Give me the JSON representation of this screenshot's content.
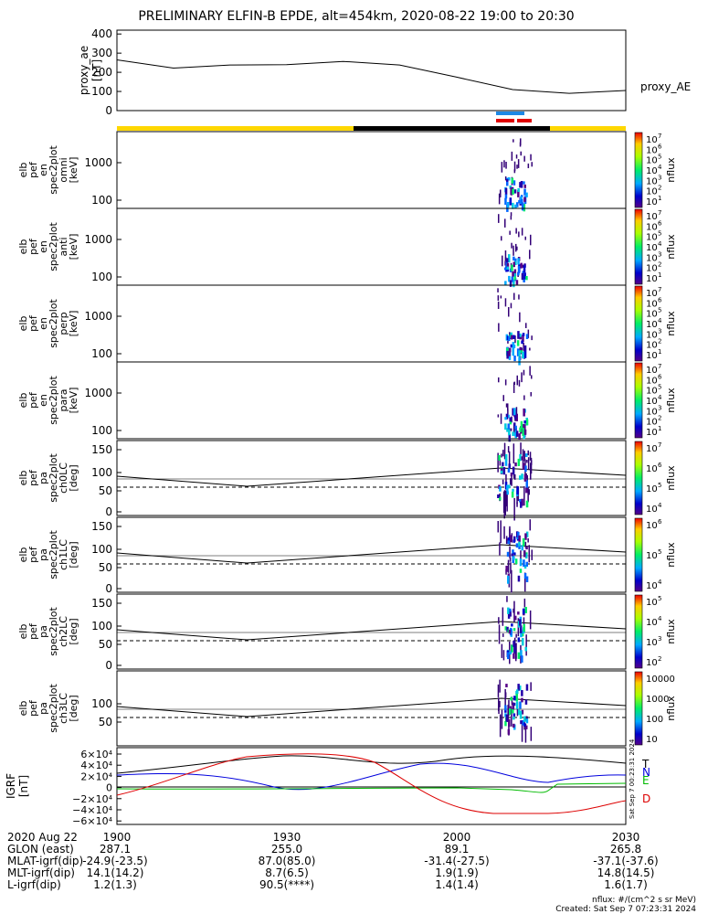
{
  "title": "PRELIMINARY ELFIN-B EPDE, alt=454km, 2020-08-22 19:00 to 20:30",
  "colors": {
    "day_bar": "#FFD700",
    "night_bar": "#000000",
    "blue_marker": "#1E88E5",
    "red_marker": "#E00000",
    "grf_T": "#000000",
    "grf_N": "#0000DD",
    "grf_E": "#00BB00",
    "grf_D": "#DD0000"
  },
  "chart_data": [
    {
      "type": "line",
      "id": "proxy_ae",
      "ylabel": [
        "proxy_ae",
        "[nT]"
      ],
      "yticks": [
        "400",
        "300",
        "200",
        "100",
        "0"
      ],
      "ylim": [
        0,
        420
      ],
      "legend": "proxy_AE",
      "x_min": [
        0,
        10,
        20,
        30,
        40,
        50,
        60,
        70,
        80,
        90
      ],
      "values": [
        265,
        222,
        238,
        240,
        257,
        238,
        175,
        110,
        90,
        105
      ]
    },
    {
      "type": "heatmap",
      "id": "en_omni",
      "ylabel": [
        "elb",
        "pef",
        "en",
        "spec2plot",
        "omni",
        "[keV]"
      ],
      "yticks": [
        "1000",
        "100"
      ],
      "colorbar": {
        "label": "nflux",
        "ticks": [
          "10",
          "10",
          "10",
          "10",
          "10",
          "10",
          "10"
        ],
        "exps": [
          "7",
          "6",
          "5",
          "4",
          "3",
          "2",
          "1"
        ]
      }
    },
    {
      "type": "heatmap",
      "id": "en_anti",
      "ylabel": [
        "elb",
        "pef",
        "en",
        "spec2plot",
        "anti",
        "[keV]"
      ],
      "yticks": [
        "1000",
        "100"
      ],
      "colorbar": {
        "label": "nflux",
        "ticks": [
          "10",
          "10",
          "10",
          "10",
          "10",
          "10",
          "10"
        ],
        "exps": [
          "7",
          "6",
          "5",
          "4",
          "3",
          "2",
          "1"
        ]
      }
    },
    {
      "type": "heatmap",
      "id": "en_perp",
      "ylabel": [
        "elb",
        "pef",
        "en",
        "spec2plot",
        "perp",
        "[keV]"
      ],
      "yticks": [
        "1000",
        "100"
      ],
      "colorbar": {
        "label": "nflux",
        "ticks": [
          "10",
          "10",
          "10",
          "10",
          "10",
          "10",
          "10"
        ],
        "exps": [
          "7",
          "6",
          "5",
          "4",
          "3",
          "2",
          "1"
        ]
      }
    },
    {
      "type": "heatmap",
      "id": "en_para",
      "ylabel": [
        "elb",
        "pef",
        "en",
        "spec2plot",
        "para",
        "[keV]"
      ],
      "yticks": [
        "1000",
        "100"
      ],
      "colorbar": {
        "label": "nflux",
        "ticks": [
          "10",
          "10",
          "10",
          "10",
          "10",
          "10",
          "10"
        ],
        "exps": [
          "7",
          "6",
          "5",
          "4",
          "3",
          "2",
          "1"
        ]
      }
    },
    {
      "type": "heatmap",
      "id": "pa_ch0",
      "ylabel": [
        "elb",
        "pef",
        "pa",
        "spec2plot",
        "ch0LC",
        "[deg]"
      ],
      "yticks": [
        "150",
        "100",
        "50",
        "0"
      ],
      "colorbar": {
        "label": "nflux",
        "ticks": [
          "10",
          "10",
          "10",
          "10"
        ],
        "exps": [
          "7",
          "6",
          "5",
          "4"
        ]
      }
    },
    {
      "type": "heatmap",
      "id": "pa_ch1",
      "ylabel": [
        "elb",
        "pef",
        "pa",
        "spec2plot",
        "ch1LC",
        "[deg]"
      ],
      "yticks": [
        "150",
        "100",
        "50",
        "0"
      ],
      "colorbar": {
        "label": "nflux",
        "ticks": [
          "10",
          "10",
          "10"
        ],
        "exps": [
          "6",
          "5",
          "4"
        ]
      }
    },
    {
      "type": "heatmap",
      "id": "pa_ch2",
      "ylabel": [
        "elb",
        "pef",
        "pa",
        "spec2plot",
        "ch2LC",
        "[deg]"
      ],
      "yticks": [
        "150",
        "100",
        "50",
        "0"
      ],
      "colorbar": {
        "label": "nflux",
        "ticks": [
          "10",
          "10",
          "10",
          "10"
        ],
        "exps": [
          "5",
          "4",
          "3",
          "2"
        ]
      }
    },
    {
      "type": "heatmap",
      "id": "pa_ch3",
      "ylabel": [
        "elb",
        "pef",
        "pa",
        "spec2plot",
        "ch3LC",
        "[deg]"
      ],
      "yticks": [
        "100",
        "50"
      ],
      "colorbar": {
        "label": "nflux",
        "ticks": [
          "10000",
          "1000",
          "100",
          "10"
        ]
      }
    },
    {
      "type": "line",
      "id": "igrf",
      "ylabel": [
        "IGRF",
        "[nT]"
      ],
      "yticks": [
        "6×10⁴",
        "4×10⁴",
        "2×10⁴",
        "0",
        "−2×10⁴",
        "−4×10⁴",
        "−6×10⁴"
      ],
      "legend": [
        "T",
        "N",
        "E",
        "D"
      ]
    }
  ],
  "footer": {
    "row_labels": [
      "2020 Aug 22",
      "GLON (east)",
      "MLAT-igrf(dip)",
      "MLT-igrf(dip)",
      "L-igrf(dip)"
    ],
    "times": [
      "1900",
      "1930",
      "2000",
      "2030"
    ],
    "columns": [
      [
        "287.1",
        "-24.9(-23.5)",
        "14.1(14.2)",
        "1.2(1.3)"
      ],
      [
        "255.0",
        "87.0(85.0)",
        "8.7(6.5)",
        "90.5(****)"
      ],
      [
        "89.1",
        "-31.4(-27.5)",
        "1.9(1.9)",
        "1.4(1.4)"
      ],
      [
        "265.8",
        "-37.1(-37.6)",
        "14.8(14.5)",
        "1.6(1.7)"
      ]
    ],
    "units_note": "nflux: #/(cm^2 s sr MeV)",
    "created": "Created: Sat Sep  7 07:23:31 2024",
    "side_stamp": "Sat Sep  7 00:23:31 2024"
  }
}
